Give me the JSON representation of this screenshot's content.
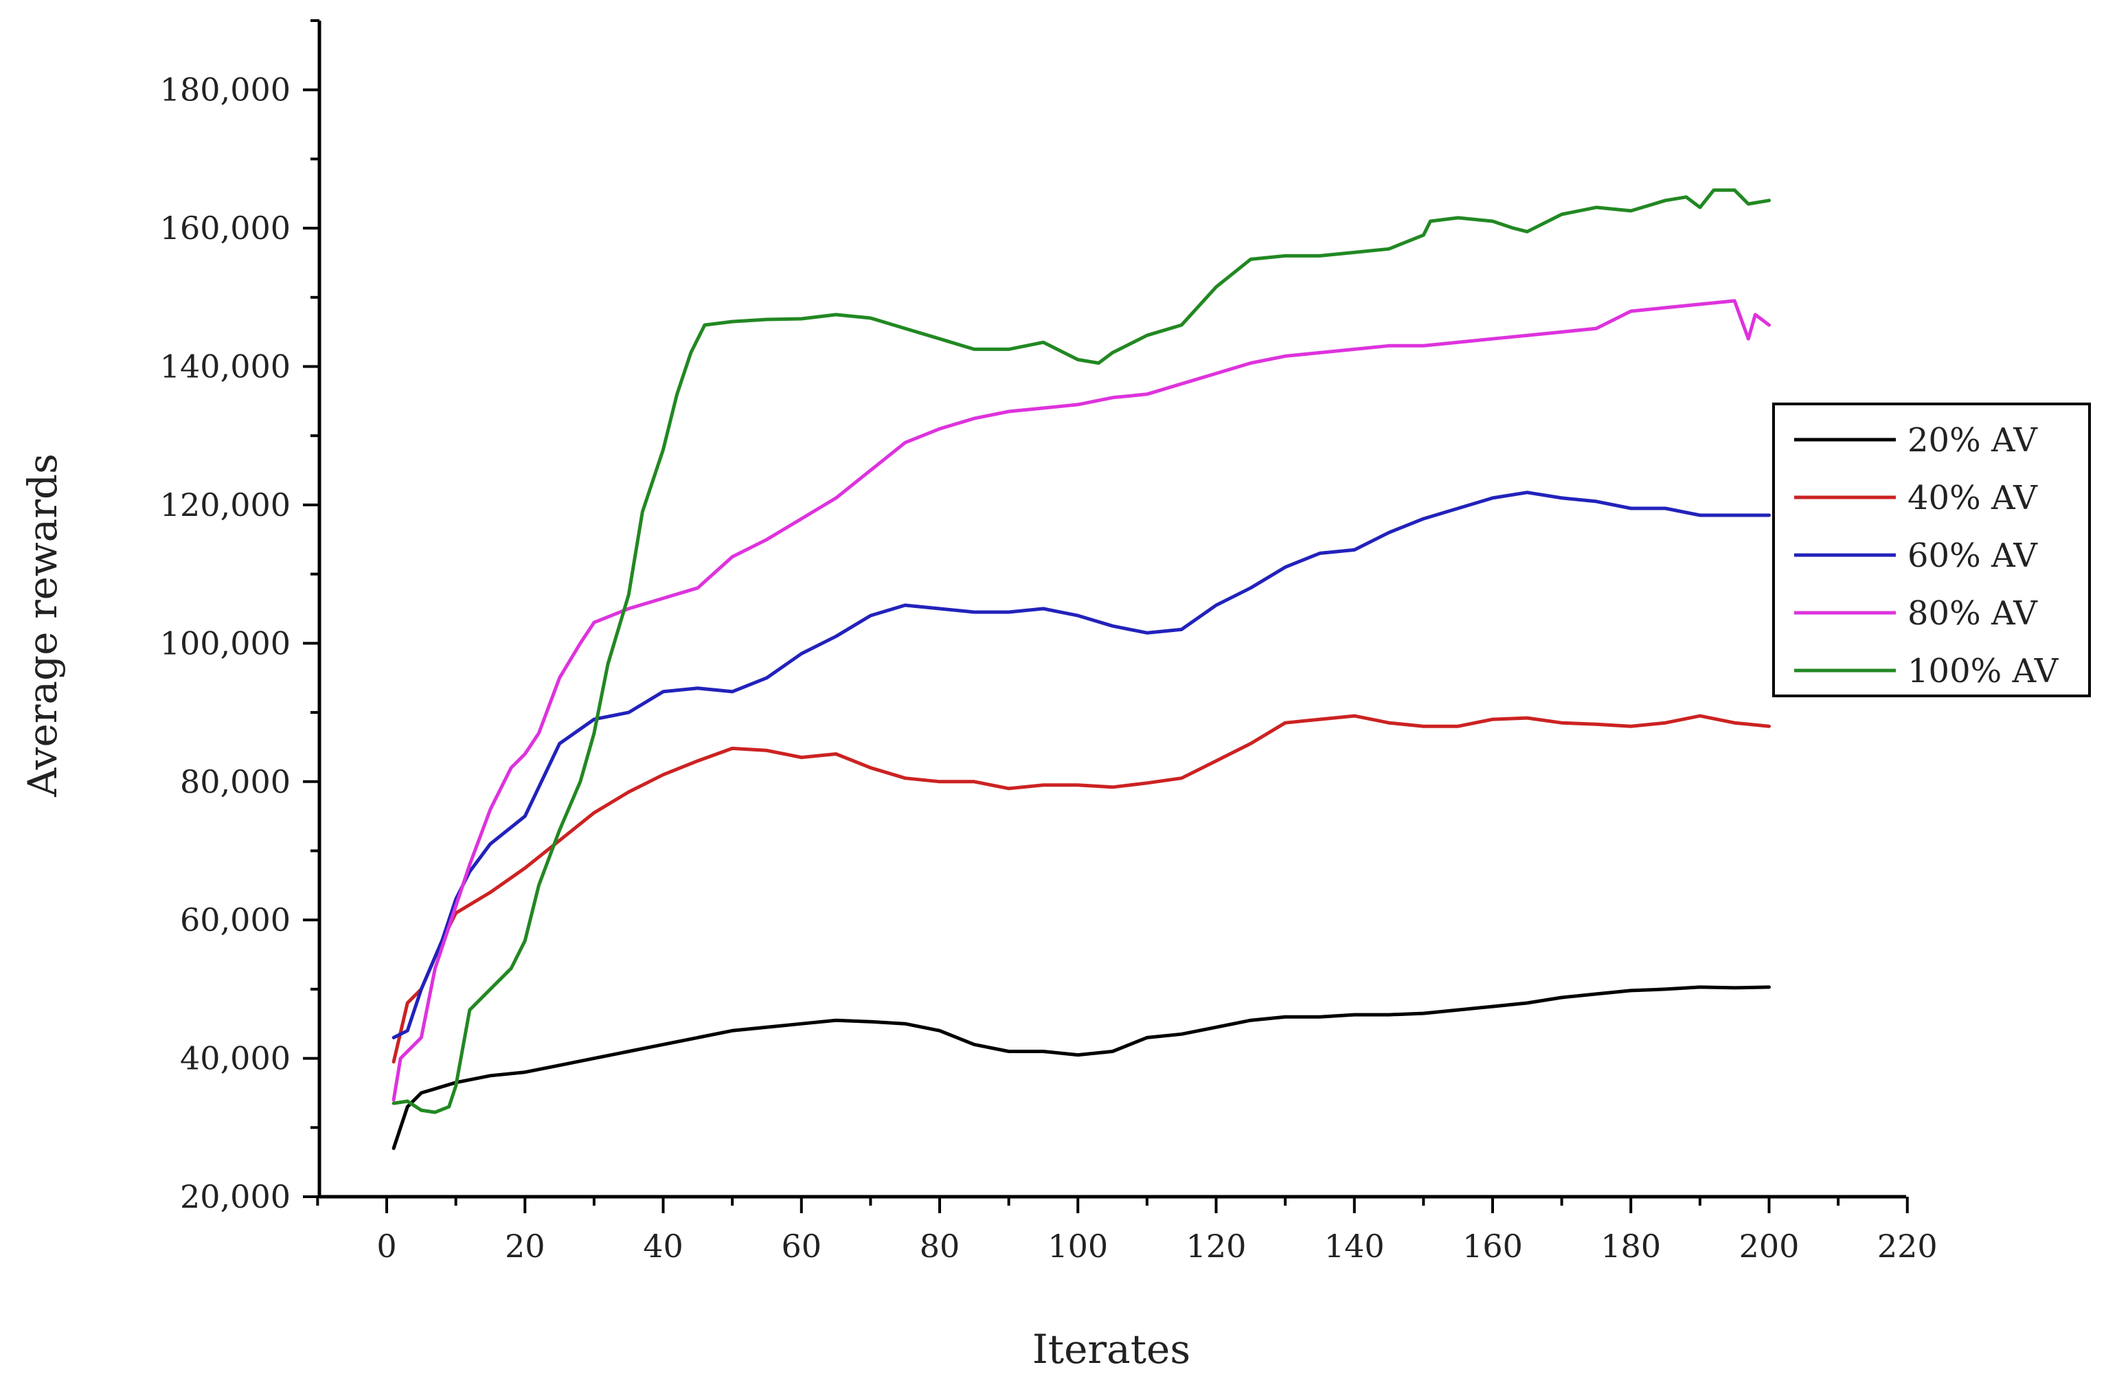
{
  "chart_data": {
    "type": "line",
    "title": "",
    "xlabel": "Iterates",
    "ylabel": "Average rewards",
    "xlim": [
      -10,
      220
    ],
    "ylim": [
      20000,
      190000
    ],
    "xticks": [
      0,
      20,
      40,
      60,
      80,
      100,
      120,
      140,
      160,
      180,
      200,
      220
    ],
    "xtick_labels": [
      "0",
      "20",
      "40",
      "60",
      "80",
      "100",
      "120",
      "140",
      "160",
      "180",
      "200",
      "220"
    ],
    "yticks": [
      20000,
      40000,
      60000,
      80000,
      100000,
      120000,
      140000,
      160000,
      180000
    ],
    "ytick_labels": [
      "20,000",
      "40,000",
      "60,000",
      "80,000",
      "100,000",
      "120,000",
      "140,000",
      "160,000",
      "180,000"
    ],
    "grid": false,
    "legend_position": "right",
    "series": [
      {
        "name": "20% AV",
        "color": "#000000",
        "x": [
          1,
          3,
          5,
          10,
          15,
          20,
          25,
          30,
          35,
          40,
          45,
          50,
          55,
          60,
          65,
          70,
          75,
          80,
          85,
          90,
          95,
          100,
          105,
          110,
          115,
          120,
          125,
          130,
          135,
          140,
          145,
          150,
          155,
          160,
          165,
          170,
          175,
          180,
          185,
          190,
          195,
          200
        ],
        "y": [
          27000,
          33000,
          35000,
          36500,
          37500,
          38000,
          39000,
          40000,
          41000,
          42000,
          43000,
          44000,
          44500,
          45000,
          45500,
          45300,
          45000,
          44000,
          42000,
          41000,
          41000,
          40500,
          41000,
          43000,
          43500,
          44500,
          45500,
          46000,
          46000,
          46300,
          46300,
          46500,
          47000,
          47500,
          48000,
          48800,
          49300,
          49800,
          50000,
          50300,
          50200,
          50300
        ]
      },
      {
        "name": "40% AV",
        "color": "#cc2222",
        "x": [
          1,
          3,
          5,
          8,
          10,
          15,
          20,
          25,
          30,
          35,
          40,
          45,
          50,
          55,
          60,
          65,
          70,
          75,
          80,
          85,
          90,
          95,
          100,
          105,
          110,
          115,
          120,
          125,
          130,
          135,
          140,
          145,
          150,
          155,
          160,
          165,
          170,
          175,
          180,
          185,
          190,
          195,
          200
        ],
        "y": [
          39500,
          48000,
          50000,
          57000,
          61000,
          64000,
          67500,
          71500,
          75500,
          78500,
          81000,
          83000,
          84800,
          84500,
          83500,
          84000,
          82000,
          80500,
          80000,
          80000,
          79000,
          79500,
          79500,
          79200,
          79800,
          80500,
          83000,
          85500,
          88500,
          89000,
          89500,
          88500,
          88000,
          88000,
          89000,
          89200,
          88500,
          88300,
          88000,
          88500,
          89500,
          88500,
          88000
        ]
      },
      {
        "name": "60% AV",
        "color": "#2222bb",
        "x": [
          1,
          3,
          5,
          8,
          10,
          12,
          15,
          20,
          25,
          30,
          35,
          40,
          45,
          50,
          55,
          60,
          65,
          70,
          75,
          80,
          85,
          90,
          95,
          100,
          105,
          110,
          115,
          120,
          125,
          130,
          135,
          140,
          145,
          150,
          155,
          160,
          165,
          170,
          175,
          180,
          185,
          190,
          195,
          200
        ],
        "y": [
          43000,
          44000,
          50000,
          57000,
          63000,
          67000,
          71000,
          75000,
          85500,
          89000,
          90000,
          93000,
          93500,
          93000,
          95000,
          98500,
          101000,
          104000,
          105500,
          105000,
          104500,
          104500,
          105000,
          104000,
          102500,
          101500,
          102000,
          105500,
          108000,
          111000,
          113000,
          113500,
          116000,
          118000,
          119500,
          121000,
          121800,
          121000,
          120500,
          119500,
          119500,
          118500,
          118500,
          118500
        ]
      },
      {
        "name": "80% AV",
        "color": "#dd33dd",
        "x": [
          1,
          2,
          5,
          7,
          10,
          12,
          15,
          18,
          20,
          22,
          25,
          28,
          30,
          35,
          40,
          45,
          50,
          55,
          60,
          65,
          70,
          75,
          80,
          85,
          90,
          95,
          100,
          105,
          110,
          115,
          120,
          125,
          130,
          135,
          140,
          145,
          150,
          155,
          160,
          165,
          170,
          175,
          180,
          185,
          190,
          195,
          197,
          198,
          200
        ],
        "y": [
          34000,
          40000,
          43000,
          53000,
          62000,
          68000,
          76000,
          82000,
          84000,
          87000,
          95000,
          100000,
          103000,
          105000,
          106500,
          108000,
          112500,
          115000,
          118000,
          121000,
          125000,
          129000,
          131000,
          132500,
          133500,
          134000,
          134500,
          135500,
          136000,
          137500,
          139000,
          140500,
          141500,
          142000,
          142500,
          143000,
          143000,
          143500,
          144000,
          144500,
          145000,
          145500,
          148000,
          148500,
          149000,
          149500,
          144000,
          147500,
          146000
        ]
      },
      {
        "name": "100% AV",
        "color": "#228822",
        "x": [
          1,
          3,
          5,
          7,
          9,
          10,
          12,
          15,
          18,
          20,
          22,
          25,
          28,
          30,
          32,
          35,
          37,
          40,
          42,
          44,
          46,
          50,
          55,
          60,
          65,
          70,
          75,
          80,
          85,
          90,
          95,
          100,
          103,
          105,
          110,
          115,
          120,
          125,
          130,
          135,
          140,
          145,
          150,
          151,
          155,
          160,
          163,
          165,
          170,
          175,
          180,
          185,
          188,
          190,
          192,
          195,
          197,
          200
        ],
        "y": [
          33500,
          33800,
          32500,
          32200,
          33000,
          36000,
          47000,
          50000,
          53000,
          57000,
          65000,
          73000,
          80000,
          87000,
          97000,
          107000,
          119000,
          128000,
          136000,
          142000,
          146000,
          146500,
          146800,
          146900,
          147500,
          147000,
          145500,
          144000,
          142500,
          142500,
          143500,
          141000,
          140500,
          142000,
          144500,
          146000,
          151500,
          155500,
          156000,
          156000,
          156500,
          157000,
          159000,
          161000,
          161500,
          161000,
          160000,
          159500,
          162000,
          163000,
          162500,
          164000,
          164500,
          163000,
          165500,
          165500,
          163500,
          164000
        ]
      }
    ]
  }
}
